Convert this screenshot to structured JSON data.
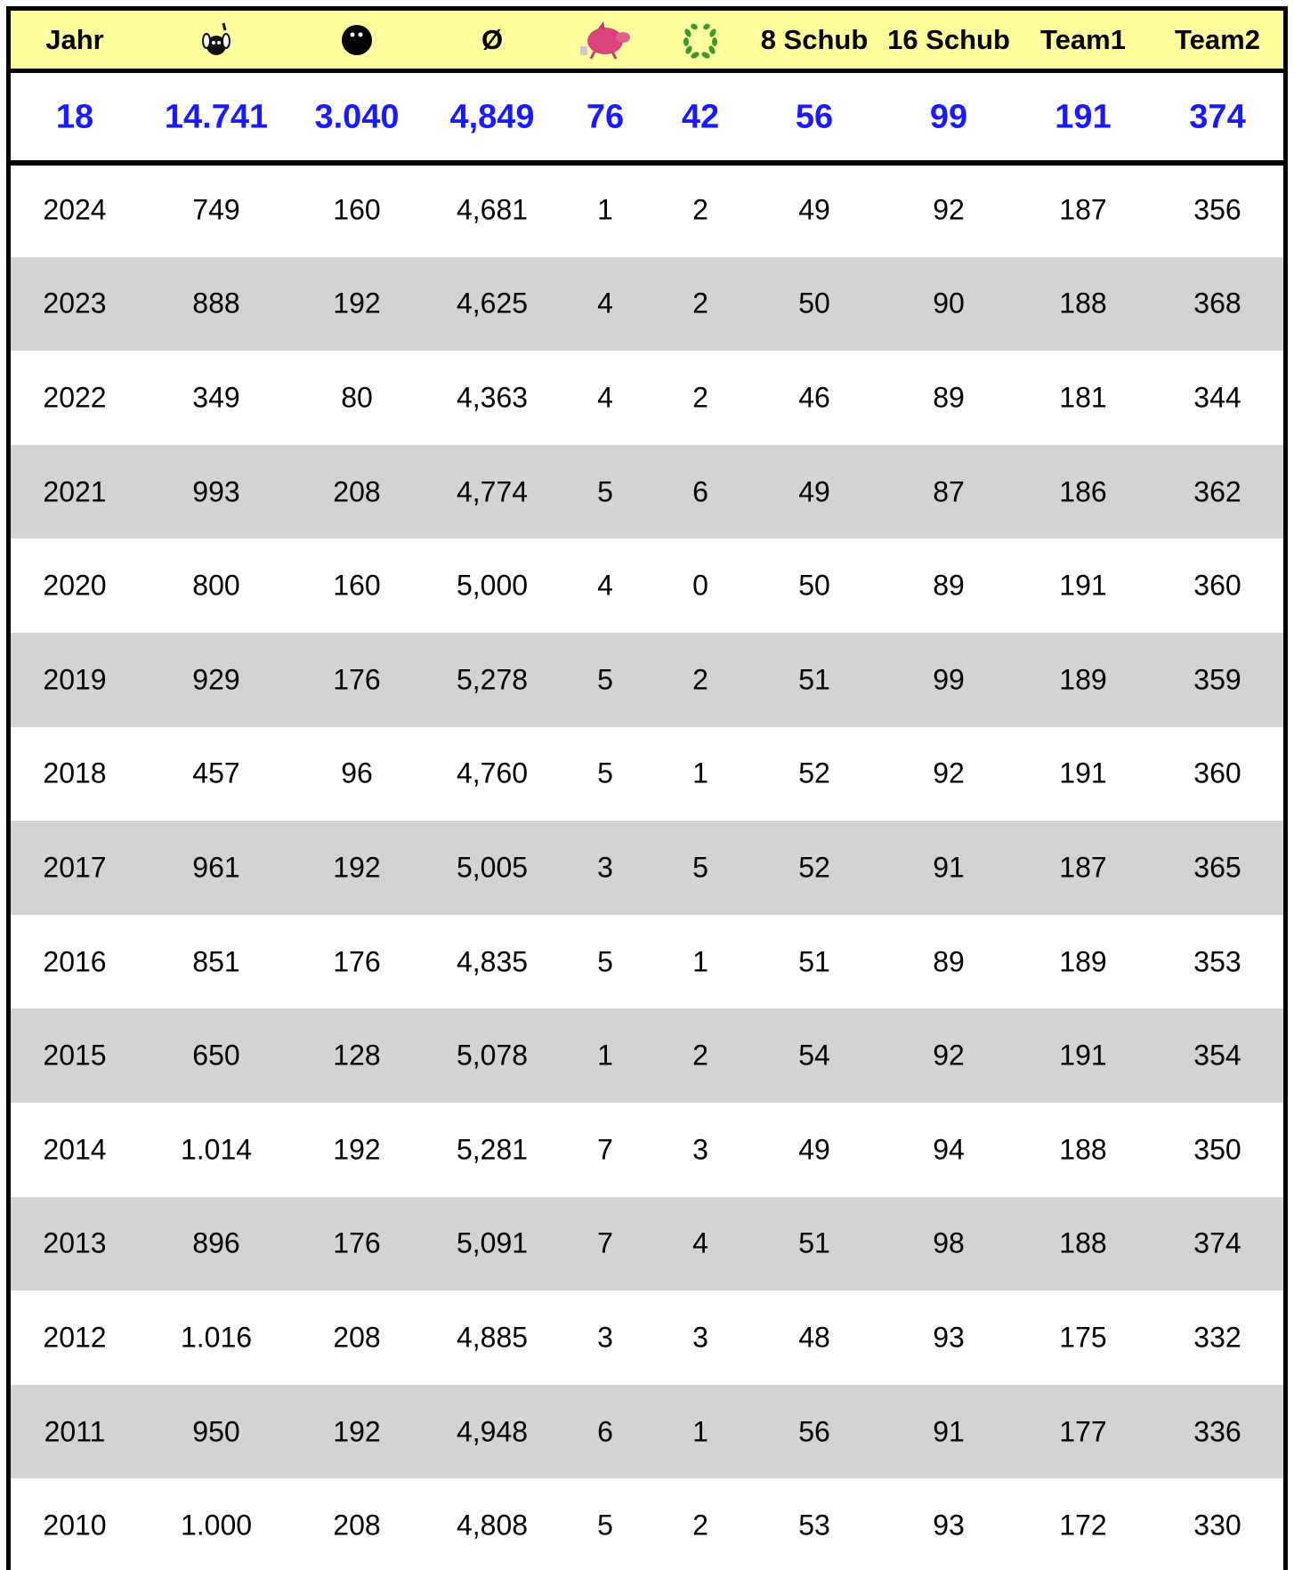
{
  "table": {
    "header": [
      "Jahr",
      null,
      null,
      "Ø",
      null,
      null,
      "8 Schub",
      "16 Schub",
      "Team1",
      "Team2"
    ],
    "totals": [
      "18",
      "14.741",
      "3.040",
      "4,849",
      "76",
      "42",
      "56",
      "99",
      "191",
      "374"
    ],
    "rows": [
      [
        "2024",
        "749",
        "160",
        "4,681",
        "1",
        "2",
        "49",
        "92",
        "187",
        "356"
      ],
      [
        "2023",
        "888",
        "192",
        "4,625",
        "4",
        "2",
        "50",
        "90",
        "188",
        "368"
      ],
      [
        "2022",
        "349",
        "80",
        "4,363",
        "4",
        "2",
        "46",
        "89",
        "181",
        "344"
      ],
      [
        "2021",
        "993",
        "208",
        "4,774",
        "5",
        "6",
        "49",
        "87",
        "186",
        "362"
      ],
      [
        "2020",
        "800",
        "160",
        "5,000",
        "4",
        "0",
        "50",
        "89",
        "191",
        "360"
      ],
      [
        "2019",
        "929",
        "176",
        "5,278",
        "5",
        "2",
        "51",
        "99",
        "189",
        "359"
      ],
      [
        "2018",
        "457",
        "96",
        "4,760",
        "5",
        "1",
        "52",
        "92",
        "191",
        "360"
      ],
      [
        "2017",
        "961",
        "192",
        "5,005",
        "3",
        "5",
        "52",
        "91",
        "187",
        "365"
      ],
      [
        "2016",
        "851",
        "176",
        "4,835",
        "5",
        "1",
        "51",
        "89",
        "189",
        "353"
      ],
      [
        "2015",
        "650",
        "128",
        "5,078",
        "1",
        "2",
        "54",
        "92",
        "191",
        "354"
      ],
      [
        "2014",
        "1.014",
        "192",
        "5,281",
        "7",
        "3",
        "49",
        "94",
        "188",
        "350"
      ],
      [
        "2013",
        "896",
        "176",
        "5,091",
        "7",
        "4",
        "51",
        "98",
        "188",
        "374"
      ],
      [
        "2012",
        "1.016",
        "208",
        "4,885",
        "3",
        "3",
        "48",
        "93",
        "175",
        "332"
      ],
      [
        "2011",
        "950",
        "192",
        "4,948",
        "6",
        "1",
        "56",
        "91",
        "177",
        "336"
      ],
      [
        "2010",
        "1.000",
        "208",
        "4,808",
        "5",
        "2",
        "53",
        "93",
        "172",
        "330"
      ]
    ]
  }
}
